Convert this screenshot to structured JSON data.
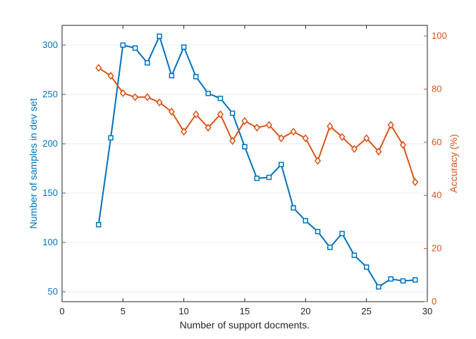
{
  "chart_data": {
    "type": "line",
    "title": "",
    "xlabel": "Number of support docments.",
    "ylabel_left": "Number of samples in dev set",
    "ylabel_right": "Accuracy (%)",
    "xlim": [
      0,
      30
    ],
    "ylim_left": [
      40,
      320
    ],
    "ylim_right": [
      0,
      104
    ],
    "x_ticks": [
      0,
      5,
      10,
      15,
      20,
      25,
      30
    ],
    "y_left_ticks": [
      50,
      100,
      150,
      200,
      250,
      300
    ],
    "y_right_ticks": [
      0,
      20,
      40,
      60,
      80,
      100
    ],
    "grid": "horizontal",
    "legend": "none",
    "colors": {
      "left": "#0072BD",
      "right": "#D95319",
      "axis": "#262626",
      "grid": "#ebebeb"
    },
    "series": [
      {
        "axis": "left",
        "marker": "square",
        "x": [
          3,
          4,
          5,
          6,
          7,
          8,
          9,
          10,
          11,
          12,
          13,
          14,
          15,
          16,
          17,
          18,
          19,
          20,
          21,
          22,
          23,
          24,
          25,
          26,
          27,
          28,
          29
        ],
        "values": [
          118,
          206,
          300,
          297,
          282,
          309,
          269,
          298,
          268,
          251,
          246,
          231,
          197,
          165,
          166,
          179,
          135,
          122,
          111,
          95,
          109,
          87,
          75,
          55,
          63,
          61,
          62
        ]
      },
      {
        "axis": "right",
        "marker": "diamond",
        "x": [
          3,
          4,
          5,
          6,
          7,
          8,
          9,
          10,
          11,
          12,
          13,
          14,
          15,
          16,
          17,
          18,
          19,
          20,
          21,
          22,
          23,
          24,
          25,
          26,
          27,
          28,
          29
        ],
        "values": [
          88,
          85,
          78.5,
          77,
          77,
          75,
          71.5,
          64,
          70.5,
          65.5,
          70.5,
          60.5,
          68,
          65.5,
          66.5,
          61.5,
          64,
          61.5,
          53,
          66,
          62,
          57.5,
          61.5,
          56.5,
          66.5,
          59,
          45
        ]
      }
    ]
  }
}
